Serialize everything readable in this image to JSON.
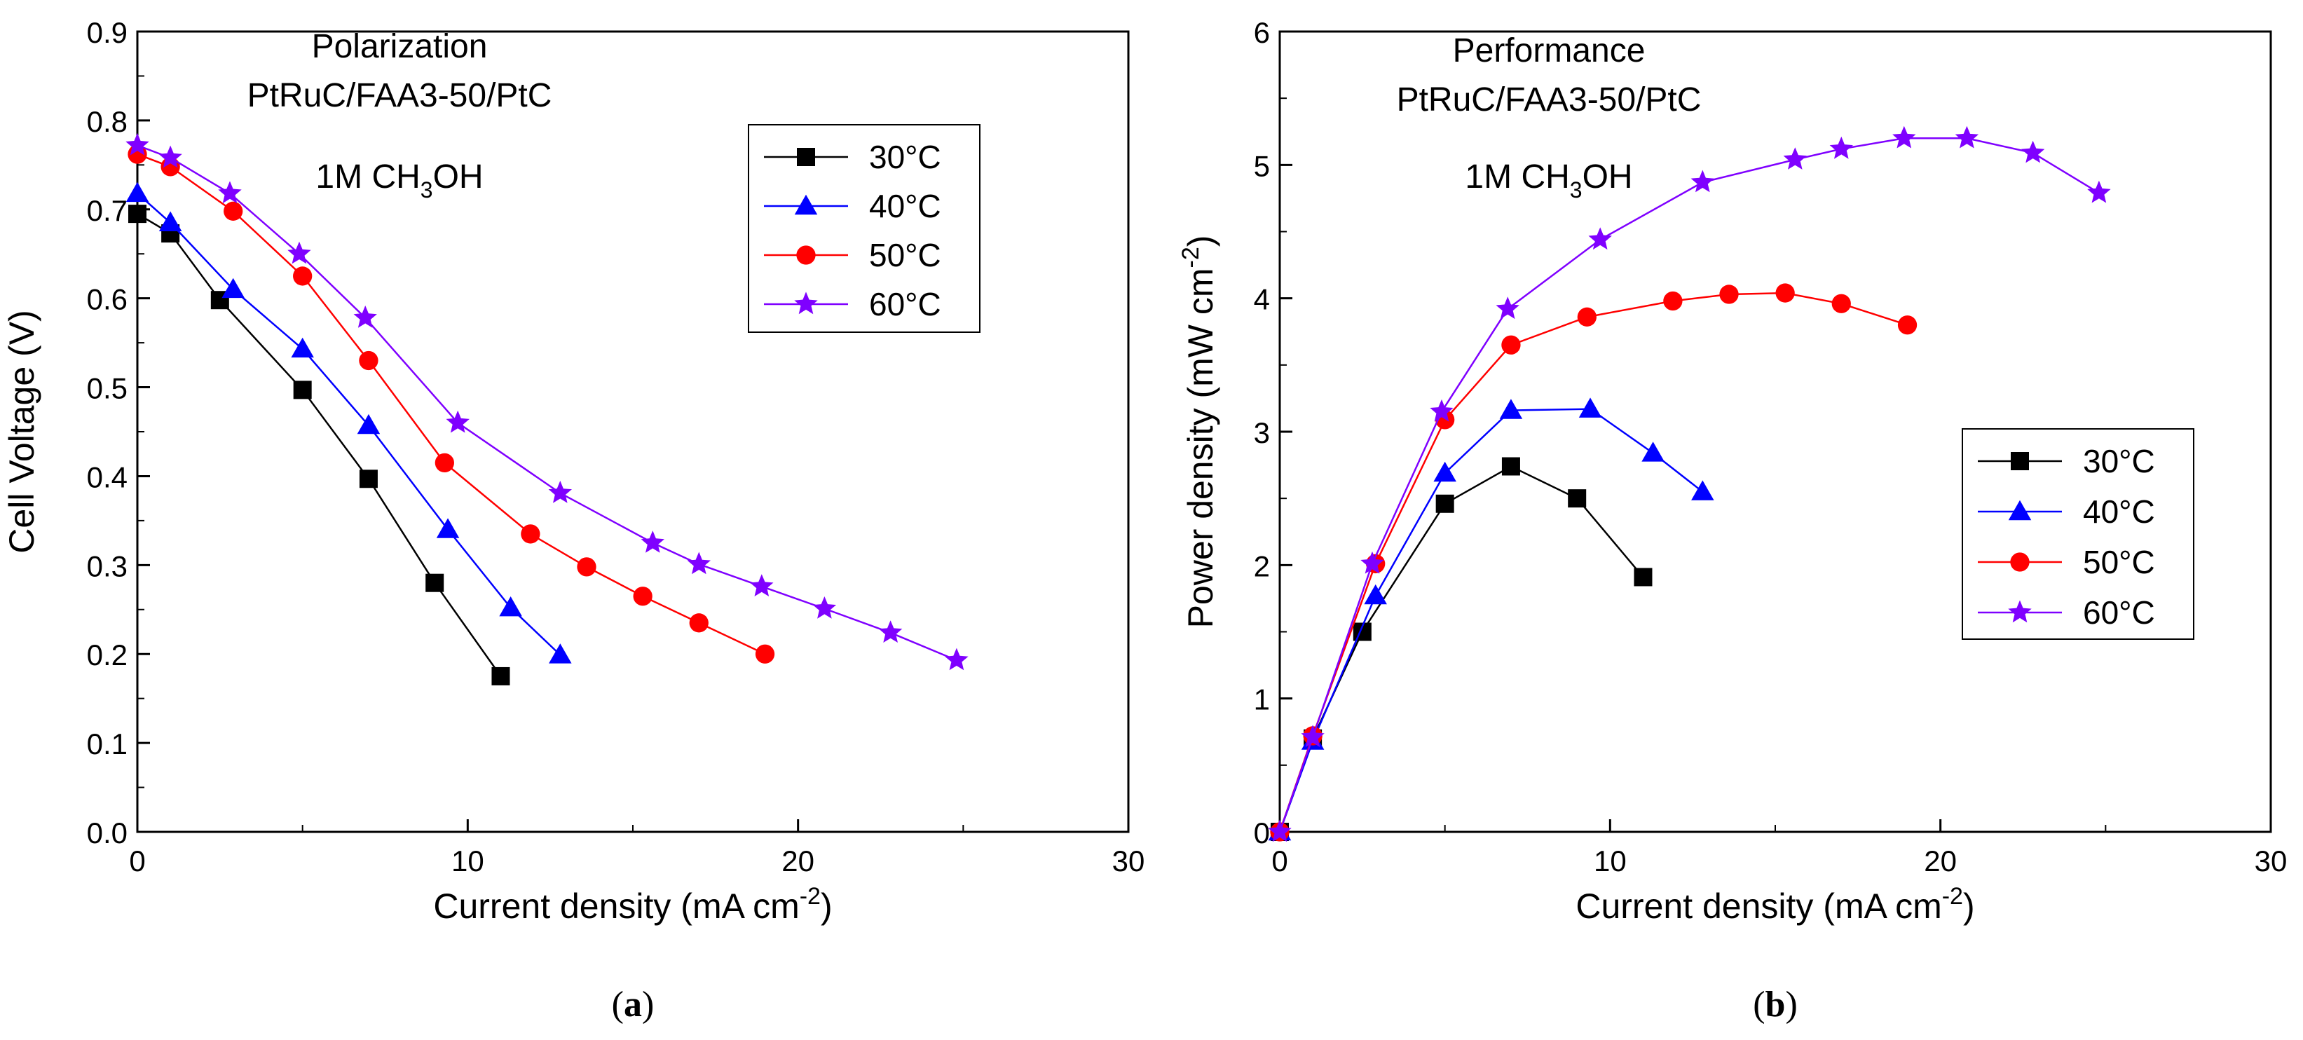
{
  "chart_data": [
    {
      "id": "a",
      "type": "line",
      "panel_label": "a",
      "title_lines": [
        "Polarization",
        "PtRuC/FAA3-50/PtC"
      ],
      "annotation": {
        "prefix": "1M CH",
        "sub": "3",
        "suffix": "OH"
      },
      "xlabel": "Current density (mA cm",
      "xlabel_sup": "-2",
      "xlabel_end": ")",
      "ylabel": "Cell Voltage (V)",
      "xlim": [
        0,
        30
      ],
      "ylim": [
        0,
        0.9
      ],
      "xticks": [
        0,
        10,
        20,
        30
      ],
      "yticks": [
        0.0,
        0.1,
        0.2,
        0.3,
        0.4,
        0.5,
        0.6,
        0.7,
        0.8,
        0.9
      ],
      "ytick_labels": [
        "0.0",
        "0.1",
        "0.2",
        "0.3",
        "0.4",
        "0.5",
        "0.6",
        "0.7",
        "0.8",
        "0.9"
      ],
      "legend_position": "top-right",
      "series": [
        {
          "name": "30°C",
          "marker": "square",
          "color": "#000000",
          "line_color": "#000000",
          "x": [
            0,
            1,
            2.5,
            5,
            7,
            9,
            11
          ],
          "y": [
            0.695,
            0.673,
            0.598,
            0.497,
            0.397,
            0.28,
            0.175
          ]
        },
        {
          "name": "40°C",
          "marker": "triangle",
          "color": "#0000ff",
          "line_color": "#0000ff",
          "x": [
            0,
            1,
            2.9,
            5,
            7,
            9.4,
            11.3,
            12.8
          ],
          "y": [
            0.718,
            0.685,
            0.61,
            0.543,
            0.457,
            0.34,
            0.252,
            0.199
          ]
        },
        {
          "name": "50°C",
          "marker": "circle",
          "color": "#ff0000",
          "line_color": "#ff0000",
          "x": [
            0,
            1,
            2.9,
            5,
            7,
            9.3,
            11.9,
            13.6,
            15.3,
            17,
            19
          ],
          "y": [
            0.762,
            0.748,
            0.698,
            0.625,
            0.53,
            0.415,
            0.335,
            0.298,
            0.265,
            0.235,
            0.2
          ]
        },
        {
          "name": "60°C",
          "marker": "star",
          "color": "#7f00ff",
          "line_color": "#7f00ff",
          "x": [
            0,
            1,
            2.8,
            4.9,
            6.9,
            9.7,
            12.8,
            15.6,
            17,
            18.9,
            20.8,
            22.8,
            24.8
          ],
          "y": [
            0.772,
            0.758,
            0.718,
            0.65,
            0.578,
            0.46,
            0.381,
            0.325,
            0.301,
            0.276,
            0.251,
            0.224,
            0.193
          ]
        }
      ]
    },
    {
      "id": "b",
      "type": "line",
      "panel_label": "b",
      "title_lines": [
        "Performance",
        "PtRuC/FAA3-50/PtC"
      ],
      "annotation": {
        "prefix": "1M CH",
        "sub": "3",
        "suffix": "OH"
      },
      "xlabel": "Current density (mA cm",
      "xlabel_sup": "-2",
      "xlabel_end": ")",
      "ylabel": "Power density (mW cm",
      "ylabel_sup": "-2",
      "ylabel_end": ")",
      "xlim": [
        0,
        30
      ],
      "ylim": [
        0,
        6
      ],
      "xticks": [
        0,
        10,
        20,
        30
      ],
      "yticks": [
        0,
        1,
        2,
        3,
        4,
        5,
        6
      ],
      "ytick_labels": [
        "0",
        "1",
        "2",
        "3",
        "4",
        "5",
        "6"
      ],
      "legend_position": "middle-right",
      "series": [
        {
          "name": "30°C",
          "marker": "square",
          "color": "#000000",
          "line_color": "#000000",
          "x": [
            0,
            1,
            2.5,
            5,
            7,
            9,
            11
          ],
          "y": [
            0,
            0.7,
            1.5,
            2.46,
            2.74,
            2.5,
            1.91
          ]
        },
        {
          "name": "40°C",
          "marker": "triangle",
          "color": "#0000ff",
          "line_color": "#0000ff",
          "x": [
            0,
            1,
            2.9,
            5,
            7,
            9.4,
            11.3,
            12.8
          ],
          "y": [
            0,
            0.68,
            1.77,
            2.69,
            3.16,
            3.17,
            2.84,
            2.55
          ]
        },
        {
          "name": "50°C",
          "marker": "circle",
          "color": "#ff0000",
          "line_color": "#ff0000",
          "x": [
            0,
            1,
            2.9,
            5,
            7,
            9.3,
            11.9,
            13.6,
            15.3,
            17,
            19
          ],
          "y": [
            0,
            0.72,
            2.01,
            3.09,
            3.65,
            3.86,
            3.98,
            4.03,
            4.04,
            3.96,
            3.8
          ]
        },
        {
          "name": "60°C",
          "marker": "star",
          "color": "#7f00ff",
          "line_color": "#7f00ff",
          "x": [
            0,
            1,
            2.8,
            4.9,
            6.9,
            9.7,
            12.8,
            15.6,
            17,
            18.9,
            20.8,
            22.8,
            24.8
          ],
          "y": [
            0,
            0.71,
            2.01,
            3.15,
            3.92,
            4.44,
            4.87,
            5.04,
            5.12,
            5.2,
            5.2,
            5.09,
            4.79
          ]
        }
      ]
    }
  ]
}
